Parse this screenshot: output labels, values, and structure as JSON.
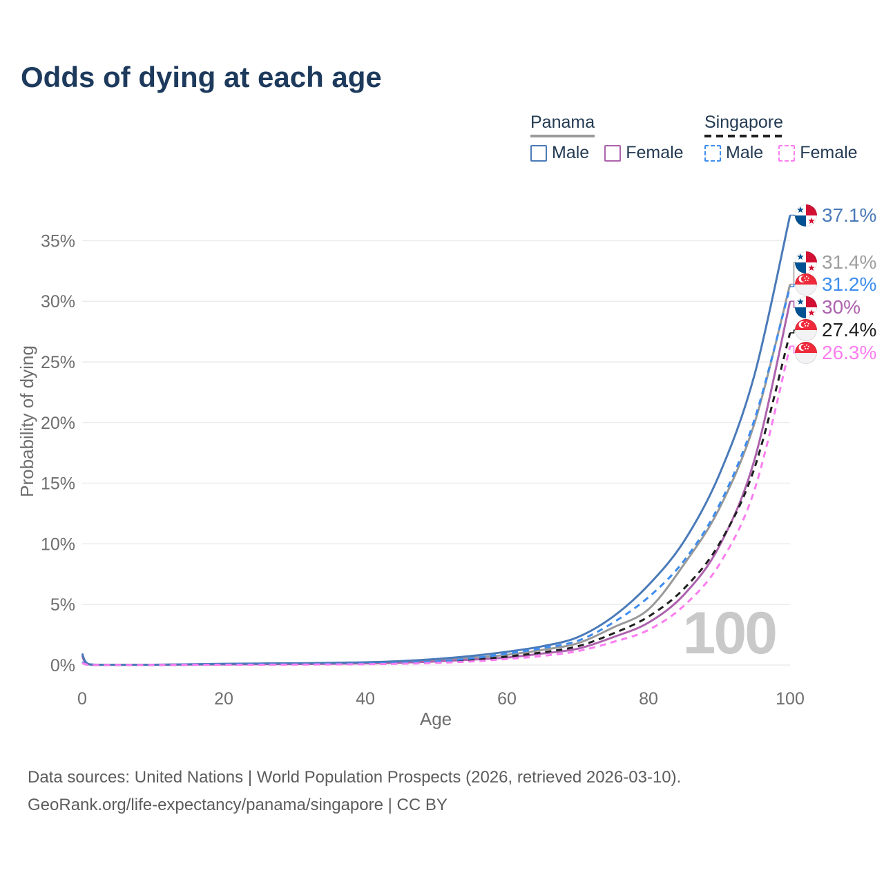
{
  "title": "Odds of dying at each age",
  "watermark": "100",
  "legend": {
    "groups": [
      {
        "name": "Panama",
        "underline_style": "solid",
        "underline_color": "#9a9a9a",
        "items": [
          {
            "label": "Male",
            "color": "#4a7ab8",
            "dashed": false
          },
          {
            "label": "Female",
            "color": "#ad62ad",
            "dashed": false
          }
        ]
      },
      {
        "name": "Singapore",
        "underline_style": "dashed",
        "underline_color": "#1f1f1f",
        "items": [
          {
            "label": "Male",
            "color": "#3e8def",
            "dashed": true
          },
          {
            "label": "Female",
            "color": "#fb7df0",
            "dashed": true
          }
        ]
      }
    ]
  },
  "axes": {
    "x": {
      "label": "Age",
      "ticks": [
        "0",
        "20",
        "40",
        "60",
        "80",
        "100"
      ],
      "tick_values": [
        0,
        20,
        40,
        60,
        80,
        100
      ],
      "range": [
        0,
        100
      ]
    },
    "y": {
      "label": "Probability of dying",
      "ticks": [
        "0%",
        "5%",
        "10%",
        "15%",
        "20%",
        "25%",
        "30%",
        "35%"
      ],
      "tick_values": [
        0,
        5,
        10,
        15,
        20,
        25,
        30,
        35
      ],
      "range": [
        0,
        37.5
      ]
    }
  },
  "annotations": [
    {
      "flag": "panama",
      "series": "Panama Male",
      "text": "37.1%",
      "value": 37.1,
      "color": "#4a7ab8"
    },
    {
      "flag": "panama",
      "series": "Panama",
      "text": "31.4%",
      "value": 31.4,
      "color": "#9e9e9e"
    },
    {
      "flag": "singapore",
      "series": "Singapore Male",
      "text": "31.2%",
      "value": 31.2,
      "color": "#3e8def"
    },
    {
      "flag": "panama",
      "series": "Panama Female",
      "text": "30%",
      "value": 30,
      "color": "#ad62ad"
    },
    {
      "flag": "singapore",
      "series": "Singapore",
      "text": "27.4%",
      "value": 27.4,
      "color": "#1f1f1f"
    },
    {
      "flag": "singapore",
      "series": "Singapore Female",
      "text": "26.3%",
      "value": 26.3,
      "color": "#fb7df0"
    }
  ],
  "chart_data": {
    "type": "line",
    "title": "Odds of dying at each age",
    "xlabel": "Age",
    "ylabel": "Probability of dying",
    "xlim": [
      0,
      100
    ],
    "ylim": [
      0,
      37.5
    ],
    "grid": true,
    "legend_position": "top-right",
    "x": [
      0,
      1,
      5,
      10,
      15,
      20,
      25,
      30,
      35,
      40,
      45,
      50,
      55,
      60,
      65,
      70,
      75,
      80,
      85,
      90,
      95,
      100
    ],
    "series": [
      {
        "name": "Panama",
        "color": "#999999",
        "style": "solid",
        "end_label": "31.4%",
        "values": [
          0.85,
          0.05,
          0.02,
          0.03,
          0.05,
          0.08,
          0.1,
          0.12,
          0.14,
          0.18,
          0.26,
          0.4,
          0.6,
          0.85,
          1.25,
          1.8,
          3.1,
          4.6,
          8.3,
          12.9,
          20.0,
          31.4
        ]
      },
      {
        "name": "Panama Female",
        "color": "#ad62ad",
        "style": "solid",
        "end_label": "30%",
        "values": [
          0.75,
          0.05,
          0.02,
          0.02,
          0.04,
          0.05,
          0.07,
          0.08,
          0.1,
          0.14,
          0.2,
          0.3,
          0.45,
          0.62,
          0.95,
          1.35,
          2.3,
          3.5,
          5.8,
          9.8,
          17.0,
          30.0
        ]
      },
      {
        "name": "Panama Male",
        "color": "#4a7ab8",
        "style": "solid",
        "end_label": "37.1%",
        "values": [
          0.95,
          0.06,
          0.03,
          0.03,
          0.06,
          0.11,
          0.13,
          0.15,
          0.18,
          0.23,
          0.33,
          0.5,
          0.75,
          1.1,
          1.55,
          2.3,
          4.0,
          6.6,
          10.2,
          15.7,
          24.0,
          37.1
        ]
      },
      {
        "name": "Singapore",
        "color": "#1f1f1f",
        "style": "dashed",
        "end_label": "27.4%",
        "values": [
          0.22,
          0.02,
          0.01,
          0.01,
          0.02,
          0.04,
          0.05,
          0.06,
          0.07,
          0.1,
          0.15,
          0.25,
          0.42,
          0.7,
          1.05,
          1.55,
          2.6,
          4.0,
          6.3,
          10.0,
          16.3,
          27.4
        ]
      },
      {
        "name": "Singapore Male",
        "color": "#3e8def",
        "style": "dashed",
        "end_label": "31.2%",
        "values": [
          0.25,
          0.02,
          0.01,
          0.01,
          0.03,
          0.05,
          0.06,
          0.07,
          0.09,
          0.12,
          0.18,
          0.3,
          0.55,
          0.95,
          1.4,
          2.0,
          3.5,
          5.6,
          8.6,
          13.2,
          20.3,
          31.2
        ]
      },
      {
        "name": "Singapore Female",
        "color": "#fb7df0",
        "style": "dashed",
        "end_label": "26.3%",
        "values": [
          0.18,
          0.02,
          0.01,
          0.01,
          0.02,
          0.03,
          0.03,
          0.04,
          0.05,
          0.07,
          0.11,
          0.18,
          0.3,
          0.5,
          0.75,
          1.15,
          1.9,
          2.9,
          4.9,
          8.3,
          14.5,
          26.3
        ]
      }
    ]
  },
  "footer": {
    "line1": "Data sources: United Nations | World Population Prospects (2026, retrieved 2026-03-10).",
    "line2": "GeoRank.org/life-expectancy/panama/singapore | CC BY"
  }
}
